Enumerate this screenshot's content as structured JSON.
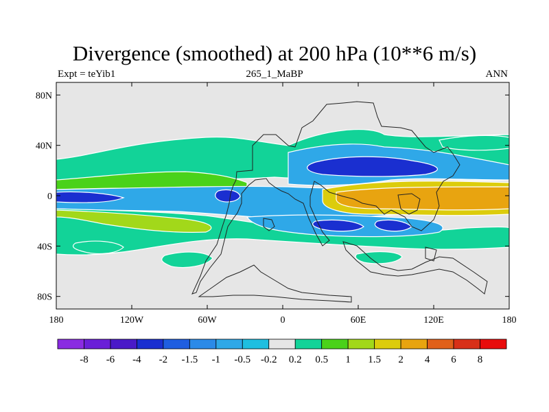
{
  "chart_data": {
    "type": "heatmap",
    "title": "Divergence (smoothed) at 200 hPa (10**6 m/s)",
    "subtitle_left": "Expt = teYib1",
    "subtitle_center": "265_1_MaBP",
    "subtitle_right": "ANN",
    "x_tick_labels": [
      "180",
      "120W",
      "60W",
      "0",
      "60E",
      "120E",
      "180"
    ],
    "x_tick_values": [
      -180,
      -120,
      -60,
      0,
      60,
      120,
      180
    ],
    "y_tick_labels": [
      "80N",
      "40N",
      "0",
      "40S",
      "80S"
    ],
    "y_tick_values": [
      80,
      40,
      0,
      -40,
      -80
    ],
    "xlim": [
      -180,
      180
    ],
    "ylim": [
      -90,
      90
    ],
    "colorbar": {
      "level_labels": [
        "-8",
        "-6",
        "-4",
        "-2",
        "-1.5",
        "-1",
        "-0.5",
        "-0.2",
        "0.2",
        "0.5",
        "1",
        "1.5",
        "2",
        "4",
        "6",
        "8"
      ],
      "colors": [
        "#8a2be2",
        "#6a1fd8",
        "#4a1ac8",
        "#1a2fd0",
        "#1f5ee0",
        "#2b8ae8",
        "#2fa8e8",
        "#1fbfe0",
        "#e6e6e6",
        "#12d398",
        "#4ad21a",
        "#a2d81a",
        "#dccc0c",
        "#e8a410",
        "#e0601a",
        "#d83018",
        "#e80c0c"
      ]
    },
    "fields": {
      "background": "#e6e6e6",
      "nh_green_band": "#12d398",
      "blue_band": "#2fa8e8",
      "dark_blue_core": "#1a2fd0",
      "orange_core": "#e8a410",
      "yellow_green": "#a2d81a",
      "light_green": "#4ad21a"
    }
  }
}
